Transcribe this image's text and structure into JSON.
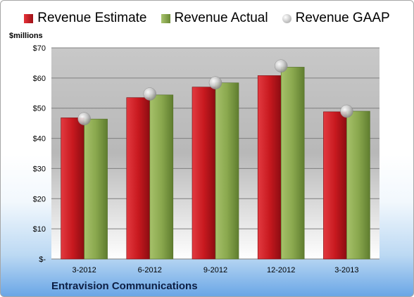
{
  "legend": {
    "estimate": "Revenue Estimate",
    "actual": "Revenue Actual",
    "gaap": "Revenue GAAP"
  },
  "unit_label": "$millions",
  "company": "Entravision Communications",
  "colors": {
    "estimate": "#c8191f",
    "actual": "#8aa84e",
    "gaap": "#b8b8b8"
  },
  "chart_data": {
    "type": "bar",
    "categories": [
      "3-2012",
      "6-2012",
      "9-2012",
      "12-2012",
      "3-2013"
    ],
    "series": [
      {
        "name": "Revenue Estimate",
        "values": [
          46.8,
          53.5,
          57.0,
          60.8,
          48.8
        ]
      },
      {
        "name": "Revenue Actual",
        "values": [
          46.4,
          54.4,
          58.4,
          63.6,
          49.0
        ]
      },
      {
        "name": "Revenue GAAP",
        "values": [
          46.5,
          54.7,
          58.4,
          64.0,
          49.0
        ]
      }
    ],
    "ylabel": "$millions",
    "ylim": [
      0,
      70
    ],
    "yticks": [
      "$-",
      "$10",
      "$20",
      "$30",
      "$40",
      "$50",
      "$60",
      "$70"
    ],
    "grid": true,
    "legend_position": "top"
  }
}
